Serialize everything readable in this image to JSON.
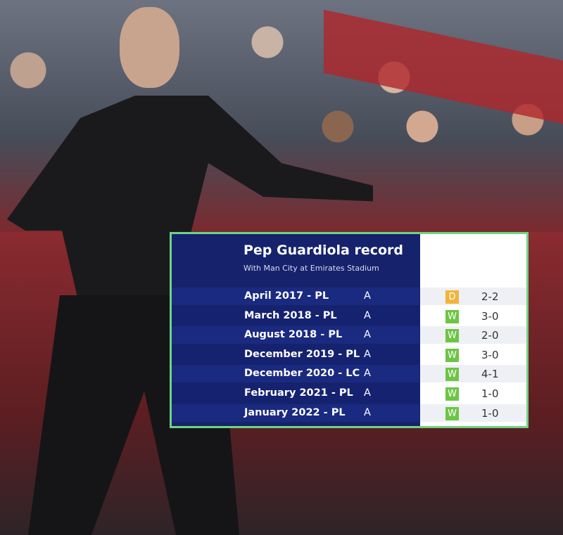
{
  "colors": {
    "navy": "#16226b",
    "border": "#6fd483",
    "win": "#6cc544",
    "draw": "#f0b43a"
  },
  "graphic": {
    "title": "Pep Guardiola record",
    "subtitle": "With Man City at Emirates Stadium",
    "rows": [
      {
        "date": "April 2017 - PL",
        "venue": "A",
        "result": "D",
        "score": "2-2"
      },
      {
        "date": "March 2018 - PL",
        "venue": "A",
        "result": "W",
        "score": "3-0"
      },
      {
        "date": "August 2018 - PL",
        "venue": "A",
        "result": "W",
        "score": "2-0"
      },
      {
        "date": "December 2019 - PL",
        "venue": "A",
        "result": "W",
        "score": "3-0"
      },
      {
        "date": "December 2020 - LC",
        "venue": "A",
        "result": "W",
        "score": "4-1"
      },
      {
        "date": "February 2021 - PL",
        "venue": "A",
        "result": "W",
        "score": "1-0"
      },
      {
        "date": "January 2022 - PL",
        "venue": "A",
        "result": "W",
        "score": "1-0"
      }
    ]
  }
}
